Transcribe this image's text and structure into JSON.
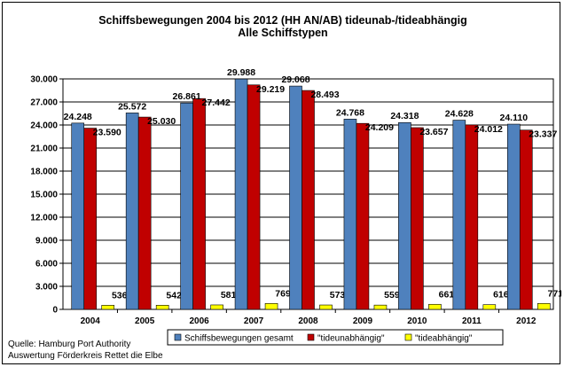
{
  "chart_data": {
    "type": "bar",
    "title": "Schiffsbewegungen  2004 bis 2012 (HH AN/AB) tideunab-/tideabhängig",
    "subtitle": "Alle Schiffstypen",
    "categories": [
      "2004",
      "2005",
      "2006",
      "2007",
      "2008",
      "2009",
      "2010",
      "2011",
      "2012"
    ],
    "series": [
      {
        "name": "Schiffsbewegungen gesamt",
        "color": "#4f81bd",
        "values": [
          24248,
          25572,
          26861,
          29988,
          29068,
          24768,
          24318,
          24628,
          24110
        ],
        "labels": [
          "24.248",
          "25.572",
          "26.861",
          "29.988",
          "29.068",
          "24.768",
          "24.318",
          "24.628",
          "24.110"
        ]
      },
      {
        "name": "\"tideunabhängig\"",
        "color": "#c00000",
        "values": [
          23590,
          25030,
          27442,
          29219,
          28493,
          24209,
          23657,
          24012,
          23337
        ],
        "labels": [
          "23.590",
          "25.030",
          "27.442",
          "29.219",
          "28.493",
          "24.209",
          "23.657",
          "24.012",
          "23.337"
        ]
      },
      {
        "name": "\"tideabhängig\"",
        "color": "#ffff00",
        "values": [
          536,
          542,
          581,
          769,
          573,
          559,
          661,
          616,
          771
        ],
        "labels": [
          "536",
          "542",
          "581",
          "769",
          "573",
          "559",
          "661",
          "616",
          "771"
        ]
      }
    ],
    "ylim": [
      0,
      30000
    ],
    "yticks": [
      0,
      3000,
      6000,
      9000,
      12000,
      15000,
      18000,
      21000,
      24000,
      27000,
      30000
    ],
    "ytick_labels": [
      "0",
      "3.000",
      "6.000",
      "9.000",
      "12.000",
      "15.000",
      "18.000",
      "21.000",
      "24.000",
      "27.000",
      "30.000"
    ],
    "grid": true,
    "legend_position": "bottom-right",
    "source_lines": [
      "Quelle: Hamburg Port Authority",
      "Auswertung Förderkreis Rettet die Elbe"
    ]
  }
}
